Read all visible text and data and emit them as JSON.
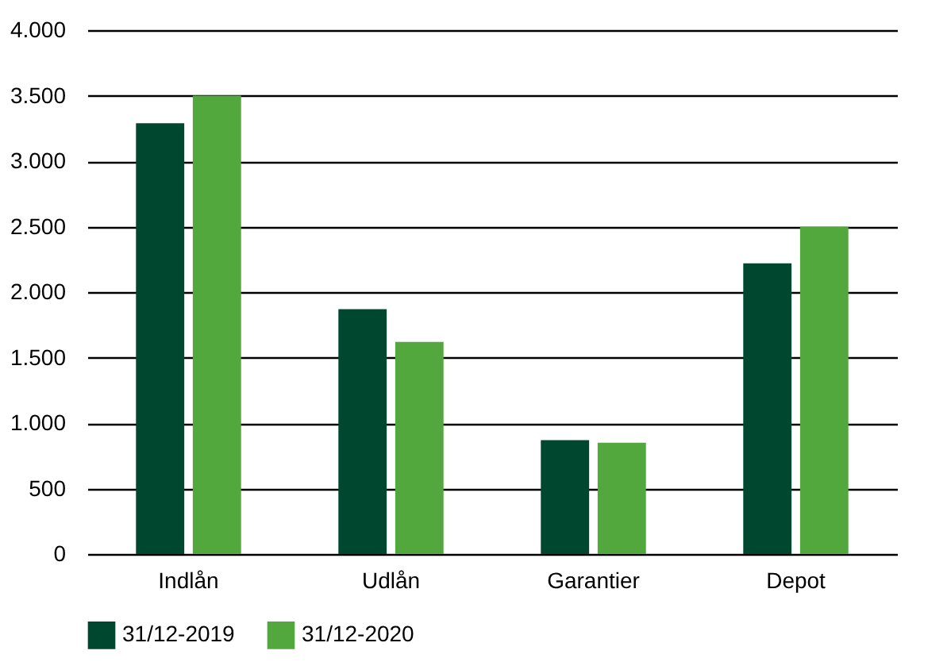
{
  "chart_data": {
    "type": "bar",
    "categories": [
      "Indlån",
      "Udlån",
      "Garantier",
      "Depot"
    ],
    "series": [
      {
        "name": "31/12-2019",
        "color": "#00472f",
        "values": [
          3290,
          1870,
          870,
          2220
        ]
      },
      {
        "name": "31/12-2020",
        "color": "#52a83d",
        "values": [
          3500,
          1620,
          850,
          2500
        ]
      }
    ],
    "ylim": [
      0,
      4000
    ],
    "yticks": [
      0,
      {
        "value": 500,
        "label": "500"
      },
      {
        "value": 1000,
        "label": "1.000"
      },
      {
        "value": 1500,
        "label": "1.500"
      },
      {
        "value": 2000,
        "label": "2.000"
      },
      {
        "value": 2500,
        "label": "2.500"
      },
      {
        "value": 3000,
        "label": "3.000"
      },
      {
        "value": 3500,
        "label": "3.500"
      },
      {
        "value": 4000,
        "label": "4.000"
      }
    ],
    "grid": "y",
    "legend": "bottom"
  }
}
